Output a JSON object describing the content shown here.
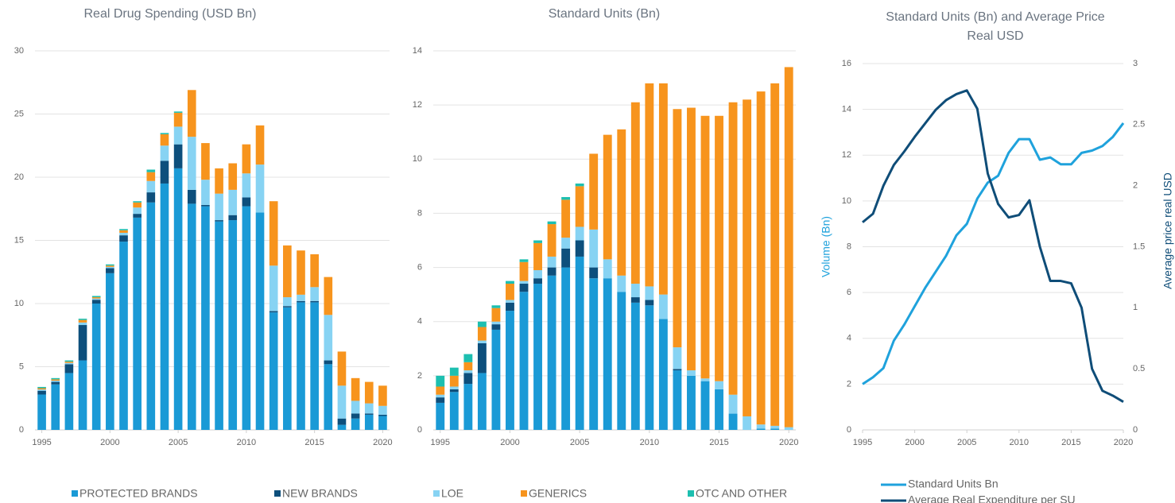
{
  "chart_data": [
    {
      "type": "bar",
      "stacked": true,
      "title": "Real Drug Spending (USD Bn)",
      "x": [
        1995,
        1996,
        1997,
        1998,
        1999,
        2000,
        2001,
        2002,
        2003,
        2004,
        2005,
        2006,
        2007,
        2008,
        2009,
        2010,
        2011,
        2012,
        2013,
        2014,
        2015,
        2016,
        2017,
        2018,
        2019,
        2020
      ],
      "xlim": [
        1994.5,
        2020.5
      ],
      "xticks": [
        1995,
        2000,
        2005,
        2010,
        2015,
        2020
      ],
      "ylim": [
        0,
        30
      ],
      "yticks": [
        0,
        5,
        10,
        15,
        20,
        25,
        30
      ],
      "grid": true,
      "legend": "bottom",
      "series": [
        {
          "name": "PROTECTED BRANDS",
          "color": "#1a9ad6",
          "values": [
            2.8,
            3.6,
            4.5,
            5.5,
            10.0,
            12.4,
            14.9,
            16.8,
            18.0,
            19.5,
            20.7,
            17.9,
            17.7,
            16.5,
            16.6,
            17.7,
            17.2,
            9.3,
            9.7,
            10.1,
            10.1,
            5.2,
            0.4,
            0.9,
            1.2,
            1.1
          ]
        },
        {
          "name": "NEW BRANDS",
          "color": "#0d4f7c",
          "values": [
            0.3,
            0.2,
            0.7,
            2.8,
            0.3,
            0.4,
            0.5,
            0.3,
            0.8,
            1.8,
            1.9,
            1.1,
            0.1,
            0.1,
            0.4,
            0.7,
            0,
            0.1,
            0.1,
            0.1,
            0.1,
            0.3,
            0.5,
            0.4,
            0.1,
            0.1
          ]
        },
        {
          "name": "LOE",
          "color": "#87d3f3",
          "values": [
            0.1,
            0.1,
            0.1,
            0.2,
            0.1,
            0.1,
            0.2,
            0.5,
            0.9,
            1.2,
            1.4,
            4.2,
            2.0,
            2.1,
            2.0,
            1.9,
            3.8,
            3.6,
            0.7,
            0.5,
            1.1,
            3.6,
            2.6,
            1.0,
            0.8,
            0.7
          ]
        },
        {
          "name": "GENERICS",
          "color": "#f7941d",
          "values": [
            0.1,
            0.1,
            0.1,
            0.2,
            0.1,
            0.1,
            0.2,
            0.4,
            0.7,
            0.9,
            1.1,
            3.7,
            2.9,
            2.0,
            2.1,
            2.3,
            3.1,
            5.1,
            4.1,
            3.5,
            2.6,
            3.0,
            2.7,
            1.8,
            1.7,
            1.6
          ]
        },
        {
          "name": "OTC AND OTHER",
          "color": "#1dbfb0",
          "values": [
            0.1,
            0.1,
            0.1,
            0.1,
            0.1,
            0.1,
            0.1,
            0.1,
            0.2,
            0.1,
            0.1,
            0,
            0,
            0,
            0,
            0,
            0,
            0,
            0,
            0,
            0,
            0,
            0,
            0,
            0,
            0
          ]
        }
      ]
    },
    {
      "type": "bar",
      "stacked": true,
      "title": "Standard Units (Bn)",
      "x": [
        1995,
        1996,
        1997,
        1998,
        1999,
        2000,
        2001,
        2002,
        2003,
        2004,
        2005,
        2006,
        2007,
        2008,
        2009,
        2010,
        2011,
        2012,
        2013,
        2014,
        2015,
        2016,
        2017,
        2018,
        2019,
        2020
      ],
      "xlim": [
        1994.5,
        2020.5
      ],
      "xticks": [
        1995,
        2000,
        2005,
        2010,
        2015,
        2020
      ],
      "ylim": [
        0,
        14
      ],
      "yticks": [
        0,
        2,
        4,
        6,
        8,
        10,
        12,
        14
      ],
      "grid": true,
      "series": [
        {
          "color": "#1a9ad6",
          "values": [
            1.0,
            1.4,
            1.7,
            2.1,
            3.7,
            4.4,
            5.1,
            5.4,
            5.7,
            6.0,
            6.4,
            5.6,
            5.6,
            5.1,
            4.7,
            4.6,
            4.1,
            2.2,
            2.0,
            1.8,
            1.5,
            0.6,
            0,
            0.05,
            0.05,
            0
          ]
        },
        {
          "color": "#0d4f7c",
          "values": [
            0.2,
            0.1,
            0.4,
            1.1,
            0.2,
            0.3,
            0.3,
            0.2,
            0.3,
            0.7,
            0.6,
            0.4,
            0,
            0,
            0.2,
            0.2,
            0,
            0.05,
            0,
            0,
            0,
            0,
            0,
            0,
            0,
            0
          ]
        },
        {
          "color": "#87d3f3",
          "values": [
            0.1,
            0.1,
            0.1,
            0.1,
            0.1,
            0.1,
            0.1,
            0.3,
            0.4,
            0.4,
            0.5,
            1.4,
            0.7,
            0.6,
            0.5,
            0.5,
            0.9,
            0.8,
            0.2,
            0.1,
            0.3,
            0.7,
            0.5,
            0.15,
            0.1,
            0.1
          ]
        },
        {
          "color": "#f7941d",
          "values": [
            0.3,
            0.4,
            0.3,
            0.5,
            0.5,
            0.6,
            0.7,
            1.0,
            1.2,
            1.4,
            1.5,
            2.8,
            4.6,
            5.4,
            6.7,
            7.5,
            7.8,
            8.8,
            9.7,
            9.7,
            9.8,
            10.8,
            11.7,
            12.3,
            12.65,
            13.3
          ]
        },
        {
          "color": "#1dbfb0",
          "values": [
            0.4,
            0.3,
            0.3,
            0.2,
            0.1,
            0.1,
            0.1,
            0.1,
            0.1,
            0.1,
            0.1,
            0,
            0,
            0,
            0,
            0,
            0,
            0,
            0,
            0,
            0,
            0,
            0,
            0,
            0,
            0
          ]
        }
      ]
    },
    {
      "type": "line",
      "title": "Standard Units (Bn) and Average Price Real USD",
      "ylabel": "Volume (Bn)",
      "y2label": "Average price real USD",
      "x": [
        1995,
        1996,
        1997,
        1998,
        1999,
        2000,
        2001,
        2002,
        2003,
        2004,
        2005,
        2006,
        2007,
        2008,
        2009,
        2010,
        2011,
        2012,
        2013,
        2014,
        2015,
        2016,
        2017,
        2018,
        2019,
        2020
      ],
      "xlim": [
        1995,
        2020
      ],
      "xticks": [
        1995,
        2000,
        2005,
        2010,
        2015,
        2020
      ],
      "ylim": [
        0,
        16
      ],
      "yticks": [
        0,
        2,
        4,
        6,
        8,
        10,
        12,
        14,
        16
      ],
      "y2lim": [
        0,
        3
      ],
      "y2ticks": [
        0,
        0.5,
        1,
        1.5,
        2,
        2.5,
        3
      ],
      "grid": true,
      "legend": "bottom",
      "series": [
        {
          "name": "Standard Units Bn",
          "color": "#1fa2dc",
          "values": [
            2.0,
            2.3,
            2.7,
            3.9,
            4.6,
            5.4,
            6.2,
            6.9,
            7.6,
            8.5,
            9.0,
            10.1,
            10.8,
            11.1,
            12.1,
            12.7,
            12.7,
            11.8,
            11.9,
            11.6,
            11.6,
            12.1,
            12.2,
            12.4,
            12.8,
            13.4
          ]
        },
        {
          "name": "Average Real Expenditure per SU",
          "color": "#0f4d78",
          "axis": "y2",
          "values": [
            1.7,
            1.77,
            2.0,
            2.17,
            2.28,
            2.4,
            2.51,
            2.62,
            2.7,
            2.75,
            2.78,
            2.63,
            2.1,
            1.85,
            1.74,
            1.76,
            1.88,
            1.5,
            1.22,
            1.22,
            1.2,
            1.0,
            0.5,
            0.32,
            0.28,
            0.23
          ]
        }
      ]
    }
  ]
}
